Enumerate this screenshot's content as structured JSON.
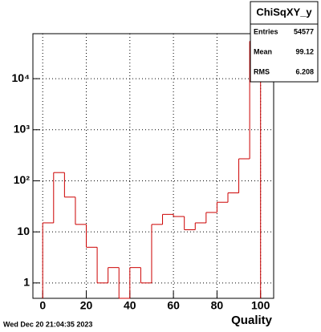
{
  "chart_data": {
    "type": "histogram",
    "xlabel": "Quality",
    "bins": [
      0,
      5,
      10,
      15,
      20,
      25,
      30,
      35,
      40,
      45,
      50,
      55,
      60,
      65,
      70,
      75,
      80,
      85,
      90,
      95,
      100
    ],
    "counts": [
      15,
      145,
      48,
      14,
      5,
      1,
      2,
      0,
      2,
      1,
      14,
      22,
      20,
      11,
      15,
      24,
      38,
      58,
      270,
      53850
    ],
    "color": "#cc0000",
    "xlim": [
      -4.5,
      106
    ],
    "xticks": [
      0,
      20,
      40,
      60,
      80,
      100
    ],
    "ylim": [
      0.5,
      76000
    ],
    "log_y": true,
    "grid": true,
    "yticks": [
      1,
      10,
      {
        "value": 100,
        "label": "10²"
      },
      {
        "value": 1000,
        "label": "10³"
      },
      {
        "value": 10000,
        "label": "10⁴"
      }
    ],
    "stats": {
      "title": "ChiSqXY_y",
      "rows": [
        [
          "Entries",
          54577
        ],
        [
          "Mean",
          99.12
        ],
        [
          "RMS",
          6.208
        ]
      ]
    },
    "timestamp": "Wed Dec 20 21:04:35 2023"
  }
}
